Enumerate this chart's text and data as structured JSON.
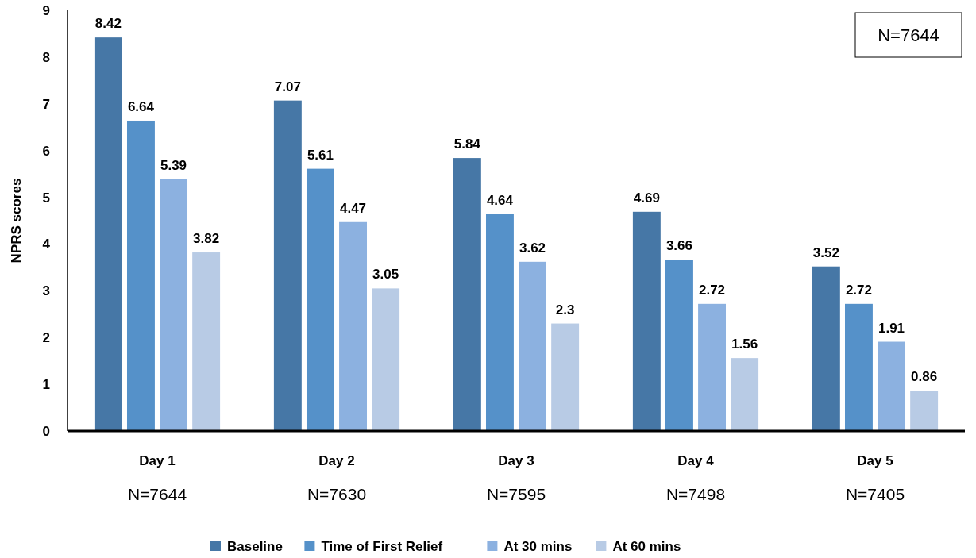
{
  "chart_data": {
    "type": "bar",
    "ylabel": "NPRS scores",
    "categories": [
      "Day 1",
      "Day 2",
      "Day 3",
      "Day 4",
      "Day 5"
    ],
    "series": [
      {
        "name": "Baseline",
        "color": "#4677a6",
        "values": [
          8.42,
          7.07,
          5.84,
          4.69,
          3.52
        ]
      },
      {
        "name": "Time of First Relief",
        "color": "#5591c9",
        "values": [
          6.64,
          5.61,
          4.64,
          3.66,
          2.72
        ]
      },
      {
        "name": "At 30 mins",
        "color": "#8cb1e0",
        "values": [
          5.39,
          4.47,
          3.62,
          2.72,
          1.91
        ]
      },
      {
        "name": "At 60 mins",
        "color": "#b8cbe5",
        "values": [
          3.82,
          3.05,
          2.3,
          1.56,
          0.86
        ]
      }
    ],
    "ylim": [
      0,
      9
    ],
    "yticks": [
      0,
      1,
      2,
      3,
      4,
      5,
      6,
      7,
      8,
      9
    ],
    "grid": false,
    "legend": "bottom",
    "data_labels": true,
    "annotations": [
      "N=7644",
      "N=7630",
      "N=7595",
      "N=7498",
      "N=7405",
      "N=7644"
    ]
  }
}
